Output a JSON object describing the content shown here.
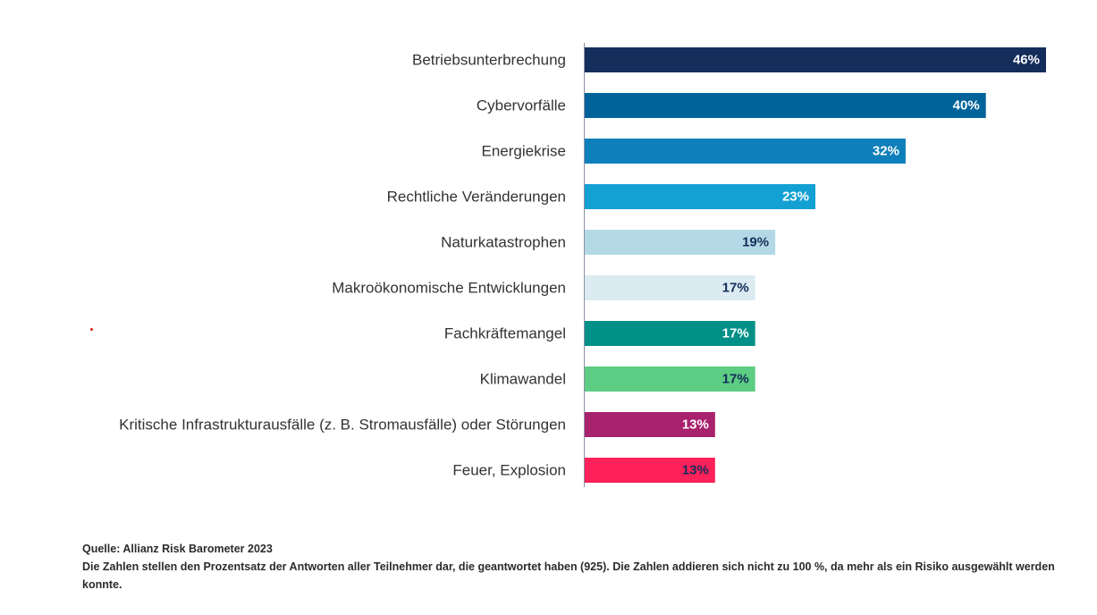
{
  "chart_data": {
    "type": "bar",
    "orientation": "horizontal",
    "categories": [
      "Betriebsunterbrechung",
      "Cybervorfälle",
      "Energiekrise",
      "Rechtliche Veränderungen",
      "Naturkatastrophen",
      "Makroökonomische Entwicklungen",
      "Fachkräftemangel",
      "Klimawandel",
      "Kritische Infrastrukturausfälle (z. B. Stromausfälle) oder Störungen",
      "Feuer, Explosion"
    ],
    "values": [
      46,
      40,
      32,
      23,
      19,
      17,
      17,
      17,
      13,
      13
    ],
    "value_labels": [
      "46%",
      "40%",
      "32%",
      "23%",
      "19%",
      "17%",
      "17%",
      "17%",
      "13%",
      "13%"
    ],
    "bar_colors": [
      "#142d5a",
      "#00639a",
      "#0d7fba",
      "#13a0d3",
      "#b4d9e6",
      "#dcebf2",
      "#009088",
      "#5ccd82",
      "#a8226e",
      "#ff2159"
    ],
    "label_colors": [
      "#ffffff",
      "#ffffff",
      "#ffffff",
      "#ffffff",
      "#142d5a",
      "#142d5a",
      "#ffffff",
      "#142d5a",
      "#ffffff",
      "#142d5a"
    ],
    "xlim": [
      0,
      46
    ],
    "grid": false,
    "legend": "none"
  },
  "footnote": {
    "source": "Quelle: Allianz Risk Barometer 2023",
    "note": "Die Zahlen stellen den Prozentsatz der Antworten aller Teilnehmer dar, die geantwortet haben (925). Die Zahlen addieren sich nicht zu 100 %, da mehr als ein Risiko ausgewählt werden konnte."
  }
}
